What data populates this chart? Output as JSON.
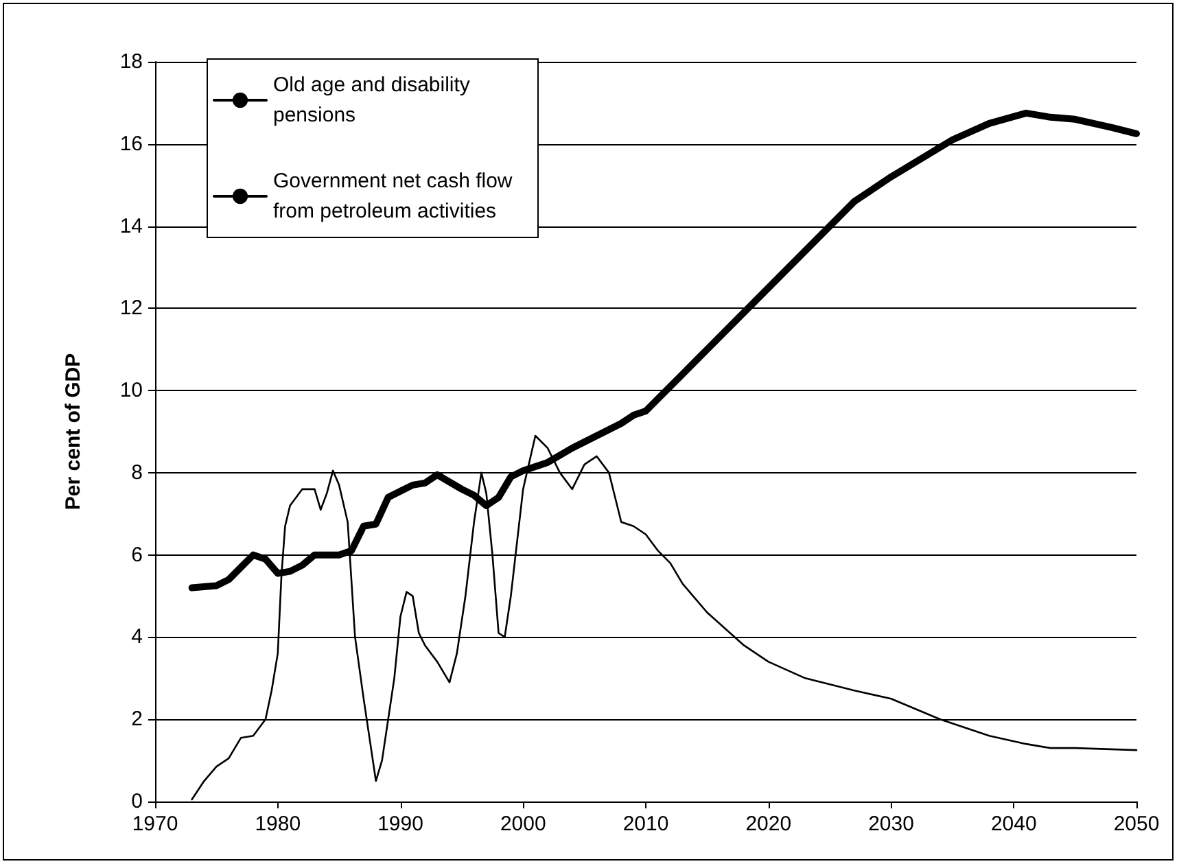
{
  "chart_data": {
    "type": "line",
    "ylabel": "Per cent of GDP",
    "xlim": [
      1970,
      2050
    ],
    "xticks": [
      1970,
      1980,
      1990,
      2000,
      2010,
      2020,
      2030,
      2040,
      2050
    ],
    "ylim": [
      0,
      18
    ],
    "yticks": [
      0,
      2,
      4,
      6,
      8,
      10,
      12,
      14,
      16,
      18
    ],
    "grid": "y",
    "legend": "top left",
    "marker": "none",
    "line_style": "solid",
    "series": [
      {
        "name": "Old age and disability pensions",
        "color": "#000000",
        "x": [
          1973,
          1975,
          1976,
          1977,
          1978,
          1979,
          1980,
          1981,
          1982,
          1983,
          1985,
          1986,
          1987,
          1988,
          1989,
          1990,
          1991,
          1992,
          1993,
          1995,
          1996,
          1997,
          1998,
          1999,
          2000,
          2002,
          2004,
          2006,
          2008,
          2009,
          2010,
          2011,
          2013,
          2015,
          2020,
          2027,
          2030,
          2035,
          2038,
          2041,
          2043,
          2045,
          2048,
          2050
        ],
        "values": [
          5.2,
          5.25,
          5.4,
          5.7,
          6.0,
          5.9,
          5.55,
          5.6,
          5.75,
          6.0,
          6.0,
          6.1,
          6.7,
          6.75,
          7.4,
          7.55,
          7.7,
          7.75,
          7.95,
          7.6,
          7.45,
          7.2,
          7.4,
          7.9,
          8.05,
          8.25,
          8.6,
          8.9,
          9.2,
          9.4,
          9.5,
          9.8,
          10.4,
          11.0,
          12.5,
          14.6,
          15.2,
          16.1,
          16.5,
          16.75,
          16.65,
          16.6,
          16.4,
          16.25
        ]
      },
      {
        "name": "Government net cash flow from petroleum activities",
        "color": "#000000",
        "x": [
          1973,
          1974,
          1975,
          1976,
          1977,
          1978,
          1979,
          1979.5,
          1980,
          1980.3,
          1980.6,
          1981,
          1982,
          1983,
          1983.5,
          1984,
          1984.5,
          1985,
          1985.7,
          1986.3,
          1987,
          1987.5,
          1988,
          1988.5,
          1989,
          1989.5,
          1990,
          1990.5,
          1991,
          1991.5,
          1992,
          1993,
          1994,
          1994.6,
          1995.3,
          1996,
          1996.6,
          1997,
          1997.5,
          1998,
          1998.5,
          1999,
          2000,
          2001,
          2002,
          2003,
          2004,
          2005,
          2006,
          2007,
          2008,
          2009,
          2010,
          2011,
          2012,
          2013,
          2015,
          2018,
          2020,
          2023,
          2027,
          2030,
          2034,
          2038,
          2041,
          2043,
          2045,
          2050
        ],
        "values": [
          0.05,
          0.5,
          0.85,
          1.05,
          1.55,
          1.6,
          2.0,
          2.7,
          3.6,
          5.5,
          6.7,
          7.2,
          7.6,
          7.6,
          7.1,
          7.5,
          8.05,
          7.7,
          6.8,
          4.0,
          2.5,
          1.5,
          0.5,
          1.0,
          2.0,
          3.0,
          4.5,
          5.1,
          5.0,
          4.1,
          3.8,
          3.4,
          2.9,
          3.6,
          5.0,
          6.8,
          8.0,
          7.5,
          6.0,
          4.1,
          4.0,
          5.0,
          7.6,
          8.9,
          8.6,
          8.0,
          7.6,
          8.2,
          8.4,
          8.0,
          6.8,
          6.7,
          6.5,
          6.1,
          5.8,
          5.3,
          4.6,
          3.8,
          3.4,
          3.0,
          2.7,
          2.5,
          2.0,
          1.6,
          1.4,
          1.3,
          1.3,
          1.25
        ]
      }
    ]
  }
}
